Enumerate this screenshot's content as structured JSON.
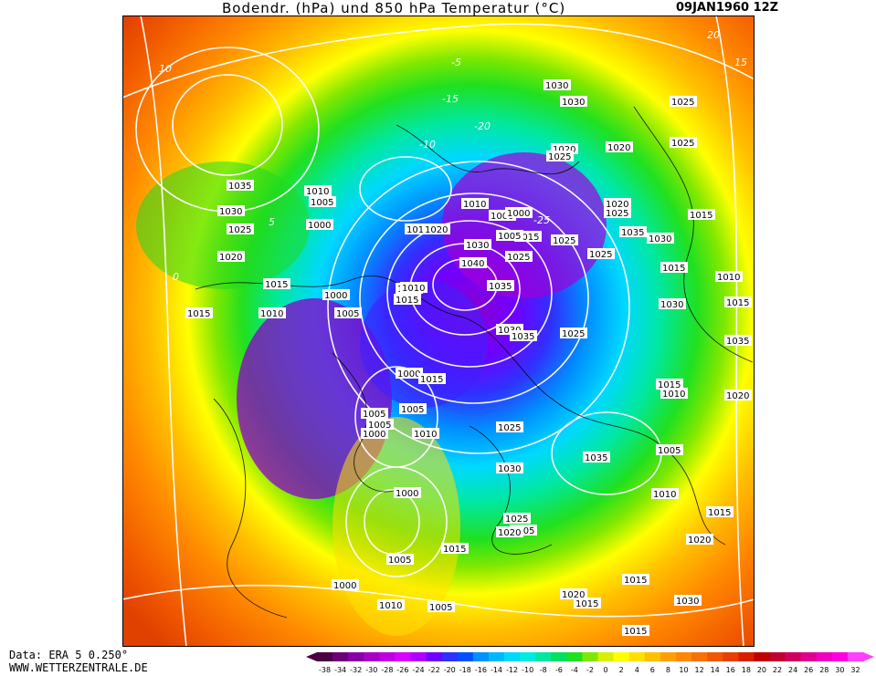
{
  "header": {
    "title": "Bodendr. (hPa) und 850 hPa Temperatur (°C)",
    "date": "09JAN1960 12Z"
  },
  "footer": {
    "source": "Data: ERA 5 0.250°",
    "website": "WWW.WETTERZENTRALE.DE"
  },
  "legend": {
    "ticks": [
      "-38",
      "-34",
      "-32",
      "-30",
      "-28",
      "-26",
      "-24",
      "-22",
      "-20",
      "-18",
      "-16",
      "-14",
      "-12",
      "-10",
      "-8",
      "-6",
      "-4",
      "-2",
      "0",
      "2",
      "4",
      "6",
      "8",
      "10",
      "12",
      "14",
      "16",
      "18",
      "20",
      "22",
      "24",
      "26",
      "28",
      "30",
      "32"
    ],
    "colors": [
      "#4a0042",
      "#6a007a",
      "#8a00a8",
      "#a800c8",
      "#c000e0",
      "#d800ff",
      "#b000ff",
      "#7000ff",
      "#3030ff",
      "#0050ff",
      "#0090ff",
      "#00b8ff",
      "#00d8ff",
      "#00ece0",
      "#00e8a0",
      "#00e060",
      "#20e020",
      "#80e800",
      "#d8f000",
      "#ffff00",
      "#ffe000",
      "#ffc000",
      "#ffa000",
      "#ff8800",
      "#f87000",
      "#f05800",
      "#e84000",
      "#d82000",
      "#c00000",
      "#c00030",
      "#d00060",
      "#e00090",
      "#f000c0",
      "#ff00e0",
      "#ff40ff"
    ]
  },
  "map": {
    "isobar_labels": [
      {
        "text": "1035"
      },
      {
        "text": "1030"
      },
      {
        "text": "1025"
      },
      {
        "text": "1020"
      },
      {
        "text": "1010"
      },
      {
        "text": "1005"
      },
      {
        "text": "1000"
      },
      {
        "text": "1015"
      },
      {
        "text": "1015"
      },
      {
        "text": "1010"
      },
      {
        "text": "1000"
      },
      {
        "text": "1005"
      },
      {
        "text": "1015"
      },
      {
        "text": "1015"
      },
      {
        "text": "1010"
      },
      {
        "text": "1020"
      },
      {
        "text": "1015"
      },
      {
        "text": "1025"
      },
      {
        "text": "1030"
      },
      {
        "text": "1025"
      },
      {
        "text": "1000"
      },
      {
        "text": "1025"
      },
      {
        "text": "1010"
      },
      {
        "text": "1000"
      },
      {
        "text": "1005"
      },
      {
        "text": "1010"
      },
      {
        "text": "1000"
      },
      {
        "text": "1005"
      },
      {
        "text": "1015"
      },
      {
        "text": "1040"
      },
      {
        "text": "1030"
      },
      {
        "text": "1025"
      },
      {
        "text": "1035"
      },
      {
        "text": "1035"
      },
      {
        "text": "1030"
      },
      {
        "text": "1015"
      },
      {
        "text": "1005"
      },
      {
        "text": "1005"
      },
      {
        "text": "1000"
      },
      {
        "text": "1010"
      },
      {
        "text": "1000"
      },
      {
        "text": "1005"
      },
      {
        "text": "1005"
      },
      {
        "text": "1000"
      },
      {
        "text": "1010"
      },
      {
        "text": "1005"
      },
      {
        "text": "1035"
      },
      {
        "text": "1025"
      },
      {
        "text": "1020"
      },
      {
        "text": "1015"
      },
      {
        "text": "1010"
      },
      {
        "text": "1015"
      },
      {
        "text": "1020"
      },
      {
        "text": "1025"
      },
      {
        "text": "1020"
      },
      {
        "text": "1025"
      },
      {
        "text": "1030"
      },
      {
        "text": "1035"
      },
      {
        "text": "1030"
      },
      {
        "text": "1030"
      },
      {
        "text": "1025"
      },
      {
        "text": "1020"
      },
      {
        "text": "1025"
      },
      {
        "text": "1015"
      },
      {
        "text": "1010"
      },
      {
        "text": "1020"
      },
      {
        "text": "1015"
      },
      {
        "text": "1015"
      },
      {
        "text": "1010"
      },
      {
        "text": "1005"
      },
      {
        "text": "1015"
      },
      {
        "text": "1015"
      },
      {
        "text": "1020"
      },
      {
        "text": "1025"
      },
      {
        "text": "1030"
      },
      {
        "text": "1020"
      },
      {
        "text": "1015"
      },
      {
        "text": "1030"
      },
      {
        "text": "1020"
      },
      {
        "text": "1035"
      }
    ],
    "temp_labels": [
      "10",
      "5",
      "0",
      "-5",
      "-10",
      "-15",
      "-20",
      "-25",
      "15",
      "20"
    ]
  }
}
